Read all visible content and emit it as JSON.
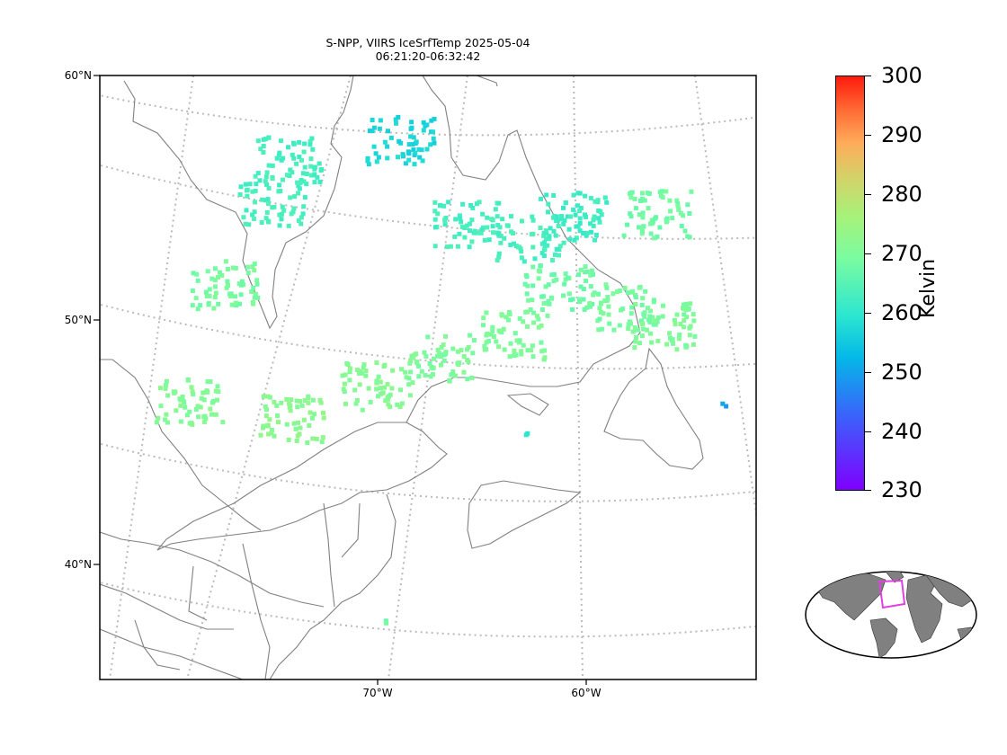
{
  "title": {
    "line1": "S-NPP, VIIRS IceSrfTemp 2025-05-04",
    "line2": "06:21:20-06:32:42"
  },
  "map": {
    "lat_labels": [
      "60°N",
      "50°N",
      "40°N"
    ],
    "lon_labels": [
      "70°W",
      "60°W"
    ],
    "coastline_color": "#808080",
    "gridline_color": "#bbbbbb"
  },
  "colorbar": {
    "ticks": [
      "300",
      "290",
      "280",
      "270",
      "260",
      "250",
      "240",
      "230"
    ],
    "unit": "Kelvin",
    "min": 230,
    "max": 300,
    "colormap": "rainbow"
  },
  "inset": {
    "land_color": "#808080",
    "highlight_color": "#e040e0"
  },
  "clusters": [
    {
      "lon": -77.5,
      "lat": 52.5,
      "temp": 269
    },
    {
      "lon": -75.5,
      "lat": 55.5,
      "temp": 263
    },
    {
      "lon": -74.8,
      "lat": 57.2,
      "temp": 263
    },
    {
      "lon": -69.5,
      "lat": 57.5,
      "temp": 257
    },
    {
      "lon": -66.0,
      "lat": 54.0,
      "temp": 263
    },
    {
      "lon": -63.0,
      "lat": 53.5,
      "temp": 263
    },
    {
      "lon": -61.0,
      "lat": 54.5,
      "temp": 262
    },
    {
      "lon": -61.5,
      "lat": 51.5,
      "temp": 268
    },
    {
      "lon": -58.5,
      "lat": 51.0,
      "temp": 269
    },
    {
      "lon": -56.5,
      "lat": 50.5,
      "temp": 270
    },
    {
      "lon": -79.0,
      "lat": 48.0,
      "temp": 271
    },
    {
      "lon": -74.0,
      "lat": 46.5,
      "temp": 272
    },
    {
      "lon": -70.0,
      "lat": 47.5,
      "temp": 271
    },
    {
      "lon": -67.0,
      "lat": 48.5,
      "temp": 270
    },
    {
      "lon": -63.5,
      "lat": 49.5,
      "temp": 270
    },
    {
      "lon": -57.0,
      "lat": 55.0,
      "temp": 268
    },
    {
      "lon": -53.3,
      "lat": 47.8,
      "temp": 250
    },
    {
      "lon": -62.6,
      "lat": 45.5,
      "temp": 261
    },
    {
      "lon": -69.0,
      "lat": 37.8,
      "temp": 268
    }
  ]
}
